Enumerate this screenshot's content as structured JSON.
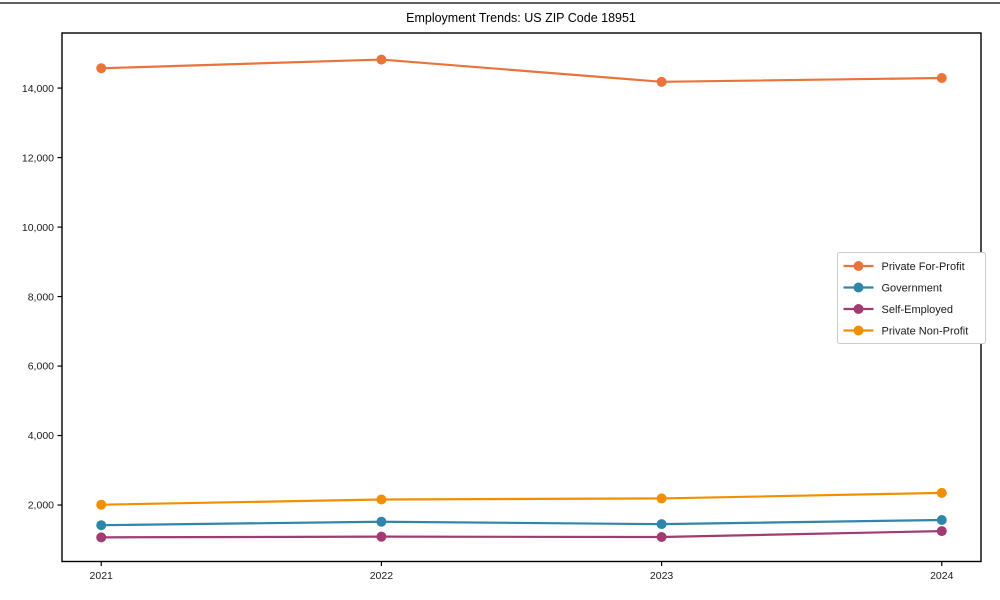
{
  "window": {
    "top_edge_line": true
  },
  "chart_data": {
    "type": "line",
    "title": "Employment Trends: US ZIP Code 18951",
    "x": [
      2021,
      2022,
      2023,
      2024
    ],
    "x_tick_labels": [
      "2021",
      "2022",
      "2023",
      "2024"
    ],
    "y_ticks": [
      2000,
      4000,
      6000,
      8000,
      10000,
      12000,
      14000
    ],
    "y_tick_labels": [
      "2,000",
      "4,000",
      "6,000",
      "8,000",
      "10,000",
      "12,000",
      "14,000"
    ],
    "xlim": [
      2020.86,
      2024.14
    ],
    "ylim": [
      375,
      15585
    ],
    "grid": false,
    "marker": "circle",
    "legend_position": "center right",
    "series": [
      {
        "name": "Private For-Profit",
        "color": "#e8743b",
        "values": [
          14570,
          14820,
          14180,
          14290
        ]
      },
      {
        "name": "Government",
        "color": "#2e86ab",
        "values": [
          1420,
          1520,
          1450,
          1570
        ]
      },
      {
        "name": "Self-Employed",
        "color": "#a23b72",
        "values": [
          1070,
          1090,
          1080,
          1250
        ]
      },
      {
        "name": "Private Non-Profit",
        "color": "#f18f01",
        "values": [
          2010,
          2160,
          2190,
          2350
        ]
      }
    ],
    "colors": {
      "background": "#ffffff",
      "axis": "#000000",
      "text": "#1a1a1a",
      "legend_border": "#cccccc",
      "legend_fill": "#ffffff"
    }
  }
}
